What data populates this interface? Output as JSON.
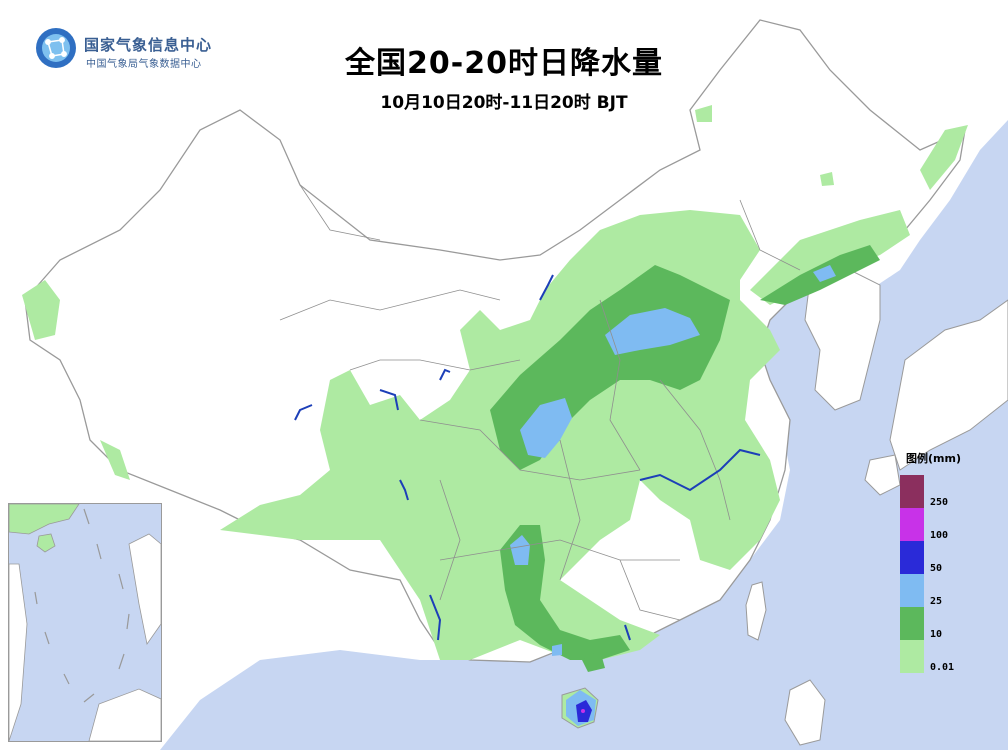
{
  "title": "全国20-20时日降水量",
  "subtitle": "10月10日20时-11日20时 BJT",
  "logo": {
    "name": "国家气象信息中心",
    "subname": "中国气象局气象数据中心",
    "icon": "globe-network-icon"
  },
  "legend": {
    "title": "图例(mm)",
    "items": [
      {
        "label": "250",
        "color": "#8b2f5e"
      },
      {
        "label": "100",
        "color": "#c832e8"
      },
      {
        "label": "50",
        "color": "#2a2ad8"
      },
      {
        "label": "25",
        "color": "#7fbbf2"
      },
      {
        "label": "10",
        "color": "#5cb85c"
      },
      {
        "label": "0.01",
        "color": "#aeeaa2"
      }
    ]
  },
  "colors": {
    "sea": "#c7d6f2",
    "land": "#ffffff",
    "border": "#9a9a9a",
    "river": "#1c3fb8"
  }
}
